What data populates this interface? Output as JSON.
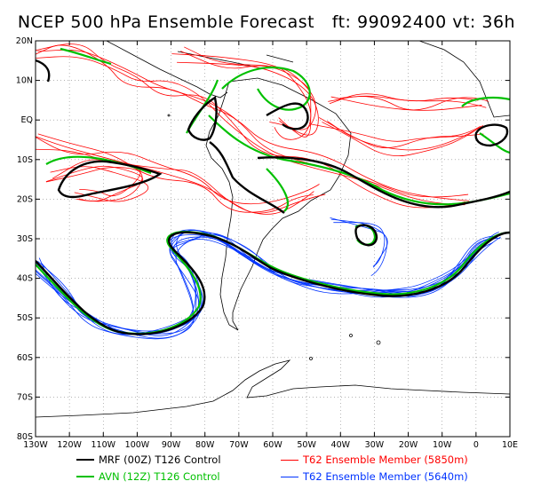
{
  "title": "NCEP 500 hPa Ensemble Forecast   ft: 99092400 vt: 36h",
  "axes": {
    "lat_labels": [
      "20N",
      "10N",
      "EQ",
      "10S",
      "20S",
      "30S",
      "40S",
      "50S",
      "60S",
      "70S",
      "80S"
    ],
    "lon_labels": [
      "130W",
      "120W",
      "110W",
      "100W",
      "90W",
      "80W",
      "70W",
      "60W",
      "50W",
      "40W",
      "30W",
      "20W",
      "10W",
      "0",
      "10E"
    ]
  },
  "legend": [
    {
      "label": "MRF (00Z) T126 Control",
      "color": "#000000",
      "width": 2.5
    },
    {
      "label": "T62 Ensemble Member (5850m)",
      "color": "#ff0000",
      "width": 1
    },
    {
      "label": "AVN (12Z) T126 Control",
      "color": "#00c000",
      "width": 2.5
    },
    {
      "label": "T62 Ensemble Member (5640m)",
      "color": "#0033ff",
      "width": 1
    }
  ],
  "colors": {
    "mrf": "#000000",
    "avn": "#00c000",
    "ens_5850": "#ff0000",
    "ens_5640": "#0033ff",
    "coast": "#000000"
  }
}
